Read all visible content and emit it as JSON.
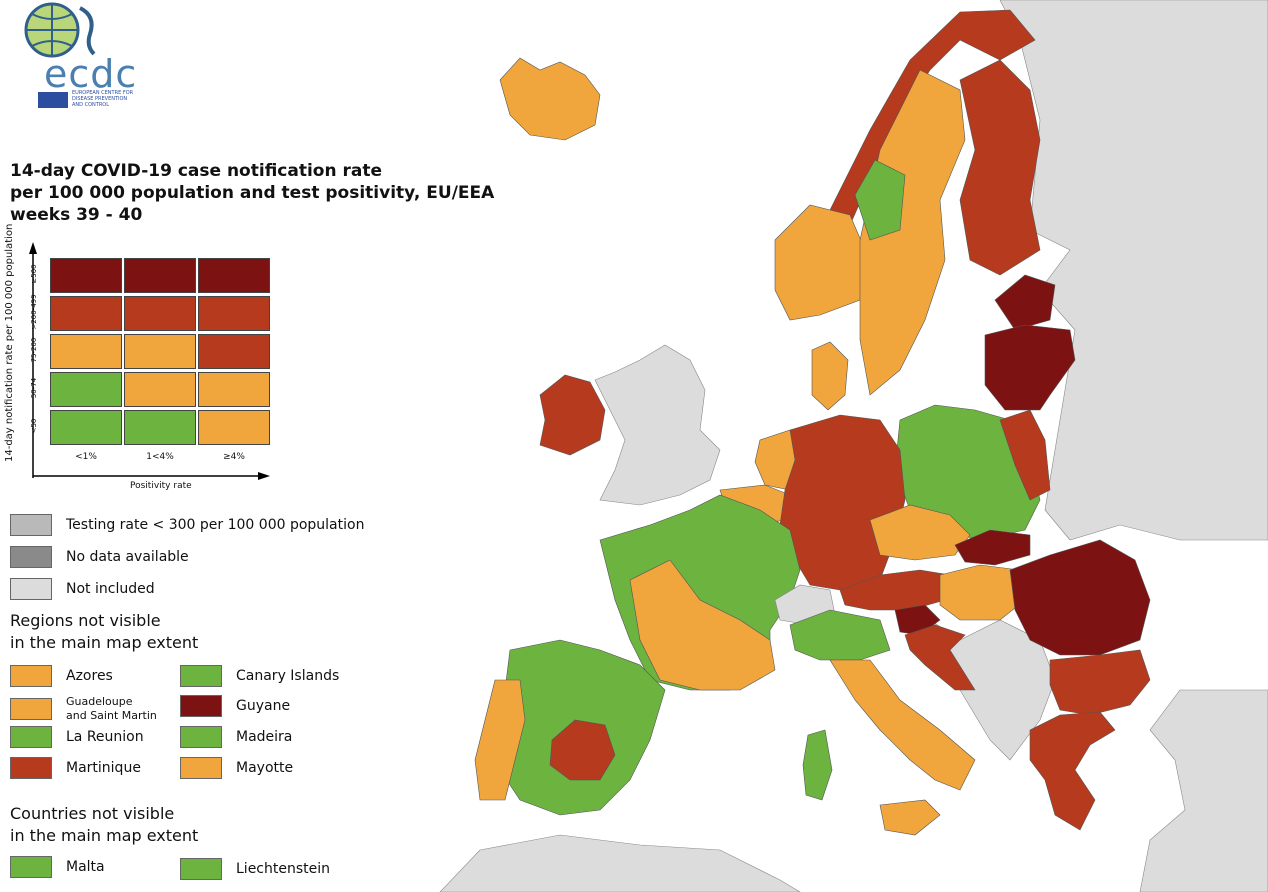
{
  "colors": {
    "dark_red": "#7d1212",
    "red": "#b63a1e",
    "orange": "#f0a63c",
    "green": "#6db33f",
    "not_included": "#dcdcdc",
    "testing_rate": "#b9b9b9",
    "no_data": "#8a8a8a",
    "sea": "#ffffff",
    "border": "#555555"
  },
  "logo": {
    "wordmark": "ecdc",
    "sub_line1": "EUROPEAN CENTRE FOR",
    "sub_line2": "DISEASE PREVENTION",
    "sub_line3": "AND CONTROL"
  },
  "title": {
    "line1": "14-day COVID-19 case notification rate",
    "line2": "per 100 000 population and test positivity, EU/EEA",
    "line3": "weeks 39 - 40"
  },
  "matrix": {
    "y_label": "14-day notification rate per 100 000 population",
    "x_label": "Positivity rate",
    "rows": [
      "≥500",
      ">200-499",
      "75-200",
      "50-74",
      "<50"
    ],
    "cols": [
      "<1%",
      "1<4%",
      "≥4%"
    ],
    "cells": [
      [
        "dark_red",
        "dark_red",
        "dark_red"
      ],
      [
        "red",
        "red",
        "red"
      ],
      [
        "orange",
        "orange",
        "red"
      ],
      [
        "green",
        "orange",
        "orange"
      ],
      [
        "green",
        "green",
        "orange"
      ]
    ]
  },
  "legend": {
    "testing_rate": "Testing rate < 300 per 100 000 population",
    "no_data": "No data available",
    "not_included": "Not included"
  },
  "regions_heading": {
    "line1": "Regions not visible",
    "line2": "in the main map extent"
  },
  "regions": [
    {
      "label": "Azores",
      "color": "orange"
    },
    {
      "label": "Canary Islands",
      "color": "green"
    },
    {
      "label_line1": "Guadeloupe",
      "label_line2": "and Saint Martin",
      "color": "orange"
    },
    {
      "label": "Guyane",
      "color": "dark_red"
    },
    {
      "label": "La Reunion",
      "color": "green"
    },
    {
      "label": "Madeira",
      "color": "green"
    },
    {
      "label": "Martinique",
      "color": "red"
    },
    {
      "label": "Mayotte",
      "color": "orange"
    }
  ],
  "countries_heading": {
    "line1": "Countries not visible",
    "line2": "in the main map extent"
  },
  "countries": [
    {
      "label": "Malta",
      "color": "green"
    },
    {
      "label": "Liechtenstein",
      "color": "green"
    }
  ],
  "map_regions": [
    {
      "name": "iceland",
      "color": "orange"
    },
    {
      "name": "ireland",
      "color": "red"
    },
    {
      "name": "uk",
      "color": "not_included"
    },
    {
      "name": "norway-north",
      "color": "red"
    },
    {
      "name": "norway-south",
      "color": "orange"
    },
    {
      "name": "sweden",
      "color": "orange"
    },
    {
      "name": "sweden-central",
      "color": "green"
    },
    {
      "name": "finland",
      "color": "red"
    },
    {
      "name": "estonia",
      "color": "dark_red"
    },
    {
      "name": "latvia-lithuania",
      "color": "dark_red"
    },
    {
      "name": "denmark",
      "color": "orange"
    },
    {
      "name": "poland-central",
      "color": "green"
    },
    {
      "name": "poland-east",
      "color": "red"
    },
    {
      "name": "germany",
      "color": "red"
    },
    {
      "name": "netherlands",
      "color": "orange"
    },
    {
      "name": "belgium",
      "color": "orange"
    },
    {
      "name": "france",
      "color": "green"
    },
    {
      "name": "france-south",
      "color": "orange"
    },
    {
      "name": "spain",
      "color": "green"
    },
    {
      "name": "spain-central",
      "color": "red"
    },
    {
      "name": "portugal",
      "color": "orange"
    },
    {
      "name": "switzerland",
      "color": "not_included"
    },
    {
      "name": "italy-north",
      "color": "green"
    },
    {
      "name": "italy",
      "color": "orange"
    },
    {
      "name": "sardinia",
      "color": "green"
    },
    {
      "name": "sicily",
      "color": "orange"
    },
    {
      "name": "czechia",
      "color": "orange"
    },
    {
      "name": "austria",
      "color": "red"
    },
    {
      "name": "slovakia",
      "color": "dark_red"
    },
    {
      "name": "hungary",
      "color": "orange"
    },
    {
      "name": "slovenia",
      "color": "dark_red"
    },
    {
      "name": "croatia",
      "color": "red"
    },
    {
      "name": "romania",
      "color": "dark_red"
    },
    {
      "name": "bulgaria",
      "color": "red"
    },
    {
      "name": "greece",
      "color": "red"
    },
    {
      "name": "balkans",
      "color": "not_included"
    },
    {
      "name": "russia-belarus",
      "color": "not_included"
    },
    {
      "name": "turkey",
      "color": "not_included"
    },
    {
      "name": "africa",
      "color": "not_included"
    }
  ]
}
